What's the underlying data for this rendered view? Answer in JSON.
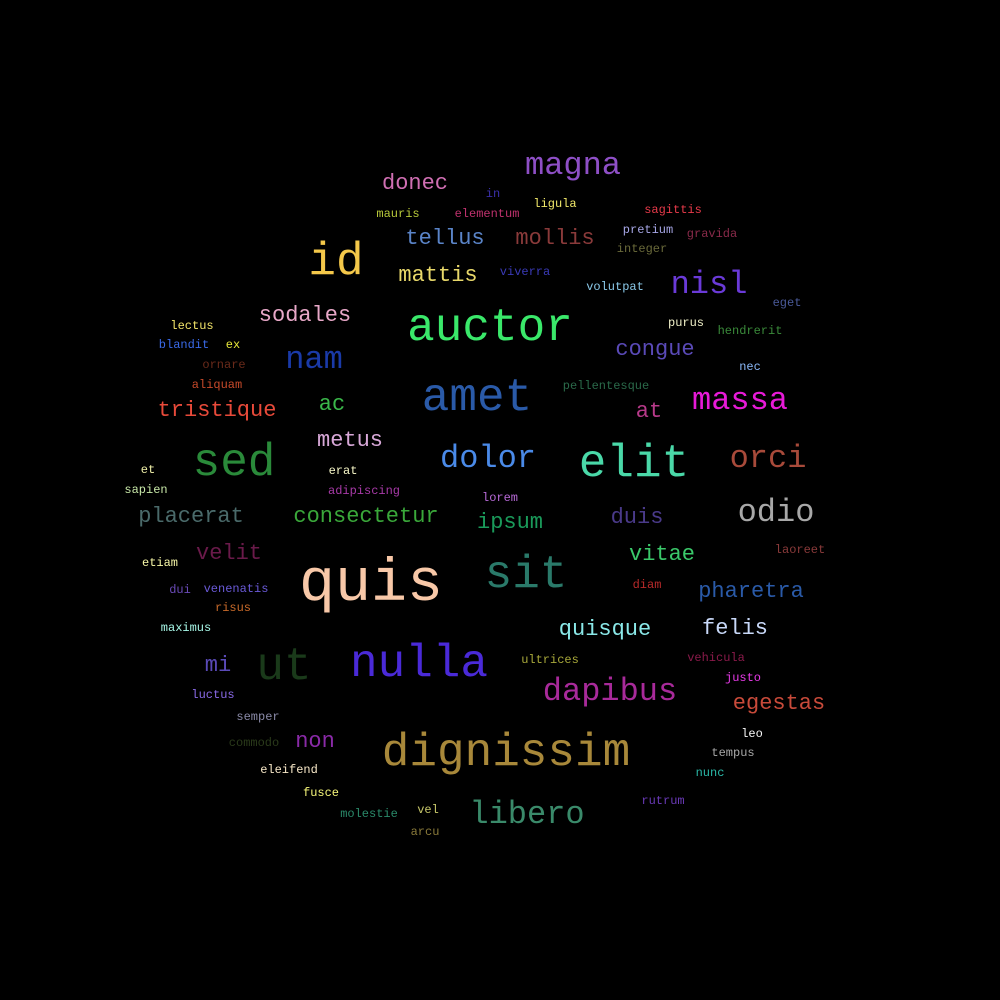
{
  "words": [
    {
      "text": "magna",
      "color": "#8e4fc6"
    },
    {
      "text": "donec",
      "color": "#d06fb3"
    },
    {
      "text": "in",
      "color": "#3a2fa8"
    },
    {
      "text": "mauris",
      "color": "#b8c93a"
    },
    {
      "text": "elementum",
      "color": "#c0326e"
    },
    {
      "text": "ligula",
      "color": "#f2e96a"
    },
    {
      "text": "sagittis",
      "color": "#e83a4a"
    },
    {
      "text": "id",
      "color": "#f4c84a"
    },
    {
      "text": "tellus",
      "color": "#5a84c8"
    },
    {
      "text": "mollis",
      "color": "#8a3a3a"
    },
    {
      "text": "pretium",
      "color": "#a6a6e6"
    },
    {
      "text": "gravida",
      "color": "#8a2a4a"
    },
    {
      "text": "integer",
      "color": "#6a6a3a"
    },
    {
      "text": "mattis",
      "color": "#e8d86a"
    },
    {
      "text": "viverra",
      "color": "#3a3ab8"
    },
    {
      "text": "nisl",
      "color": "#6a3ad8"
    },
    {
      "text": "volutpat",
      "color": "#8ac8e8"
    },
    {
      "text": "eget",
      "color": "#4a5a9a"
    },
    {
      "text": "sodales",
      "color": "#e8a8c8"
    },
    {
      "text": "auctor",
      "color": "#3ae86a"
    },
    {
      "text": "lectus",
      "color": "#f4e66a"
    },
    {
      "text": "purus",
      "color": "#f0f0c8"
    },
    {
      "text": "hendrerit",
      "color": "#3a8a3a"
    },
    {
      "text": "blandit",
      "color": "#3a6ae8"
    },
    {
      "text": "ex",
      "color": "#e8e83a"
    },
    {
      "text": "nam",
      "color": "#1a3aa8"
    },
    {
      "text": "congue",
      "color": "#5a4ab8"
    },
    {
      "text": "ornare",
      "color": "#6a2a1a"
    },
    {
      "text": "nec",
      "color": "#8ab8f8"
    },
    {
      "text": "aliquam",
      "color": "#c84a2a"
    },
    {
      "text": "amet",
      "color": "#2a5aa8"
    },
    {
      "text": "pellentesque",
      "color": "#2a6a4a"
    },
    {
      "text": "tristique",
      "color": "#e84a3a"
    },
    {
      "text": "ac",
      "color": "#3ab84a"
    },
    {
      "text": "at",
      "color": "#b83a8a"
    },
    {
      "text": "massa",
      "color": "#e81ad8"
    },
    {
      "text": "metus",
      "color": "#d8a8d8"
    },
    {
      "text": "sed",
      "color": "#2a8a3a"
    },
    {
      "text": "dolor",
      "color": "#4a8ae8"
    },
    {
      "text": "elit",
      "color": "#4ad8a8"
    },
    {
      "text": "orci",
      "color": "#a84a3a"
    },
    {
      "text": "et",
      "color": "#f0f0a8"
    },
    {
      "text": "erat",
      "color": "#f8f8c8"
    },
    {
      "text": "sapien",
      "color": "#c8e8a8"
    },
    {
      "text": "adipiscing",
      "color": "#a83aa8"
    },
    {
      "text": "lorem",
      "color": "#b86ad8"
    },
    {
      "text": "odio",
      "color": "#a8a8a8"
    },
    {
      "text": "placerat",
      "color": "#4a6a6a"
    },
    {
      "text": "consectetur",
      "color": "#3aa83a"
    },
    {
      "text": "ipsum",
      "color": "#1a9a5a"
    },
    {
      "text": "duis",
      "color": "#4a3a8a"
    },
    {
      "text": "velit",
      "color": "#6a1a4a"
    },
    {
      "text": "vitae",
      "color": "#3ac86a"
    },
    {
      "text": "laoreet",
      "color": "#8a3a3a"
    },
    {
      "text": "etiam",
      "color": "#f8f8a8"
    },
    {
      "text": "quis",
      "color": "#f8c8a8"
    },
    {
      "text": "sit",
      "color": "#2a7a6a"
    },
    {
      "text": "diam",
      "color": "#b82a2a"
    },
    {
      "text": "dui",
      "color": "#6a4ab8"
    },
    {
      "text": "venenatis",
      "color": "#6a5ad8"
    },
    {
      "text": "pharetra",
      "color": "#2a5aa8"
    },
    {
      "text": "risus",
      "color": "#c86a2a"
    },
    {
      "text": "maximus",
      "color": "#a8f8e8"
    },
    {
      "text": "quisque",
      "color": "#8ae8e8"
    },
    {
      "text": "felis",
      "color": "#c8d8f8"
    },
    {
      "text": "mi",
      "color": "#5a4ab8"
    },
    {
      "text": "ut",
      "color": "#1a3a1a"
    },
    {
      "text": "nulla",
      "color": "#4a2ad8"
    },
    {
      "text": "ultrices",
      "color": "#a8a83a"
    },
    {
      "text": "vehicula",
      "color": "#8a1a4a"
    },
    {
      "text": "dapibus",
      "color": "#a82a9a"
    },
    {
      "text": "justo",
      "color": "#e83ae8"
    },
    {
      "text": "luctus",
      "color": "#8a6ae8"
    },
    {
      "text": "egestas",
      "color": "#c84a3a"
    },
    {
      "text": "semper",
      "color": "#8a8aa8"
    },
    {
      "text": "leo",
      "color": "#f8f8f8"
    },
    {
      "text": "commodo",
      "color": "#2a3a1a"
    },
    {
      "text": "non",
      "color": "#8a2aa8"
    },
    {
      "text": "dignissim",
      "color": "#a8883a"
    },
    {
      "text": "tempus",
      "color": "#a8a8a8"
    },
    {
      "text": "eleifend",
      "color": "#f8e8c8"
    },
    {
      "text": "nunc",
      "color": "#2ab8a8"
    },
    {
      "text": "fusce",
      "color": "#f8f87a"
    },
    {
      "text": "rutrum",
      "color": "#6a3ab8"
    },
    {
      "text": "molestie",
      "color": "#2a8a6a"
    },
    {
      "text": "vel",
      "color": "#c8c86a"
    },
    {
      "text": "libero",
      "color": "#3a8a6a"
    },
    {
      "text": "arcu",
      "color": "#8a7a3a"
    }
  ]
}
